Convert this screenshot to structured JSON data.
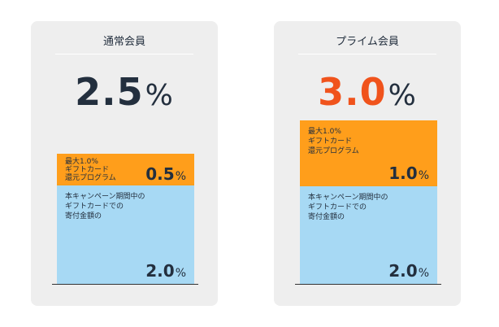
{
  "colors": {
    "orange": "#ff9e1b",
    "blue": "#a7d9f4",
    "card_bg": "#eeeeee",
    "dark_text": "#232f3e",
    "prime_accent": "#f0531c"
  },
  "cards": [
    {
      "title": "通常会員",
      "total_rate": "2.5",
      "total_unit": "%",
      "bonus": {
        "label": "最大1.0%\nギフトカード\n還元プログラム",
        "value": "0.5",
        "unit": "%"
      },
      "base": {
        "label": "本キャンペーン期間中の\nギフトカードでの\n寄付金額の",
        "value": "2.0",
        "unit": "%"
      }
    },
    {
      "title": "プライム会員",
      "total_rate": "3.0",
      "total_unit": "%",
      "bonus": {
        "label": "最大1.0%\nギフトカード\n還元プログラム",
        "value": "1.0",
        "unit": "%"
      },
      "base": {
        "label": "本キャンペーン期間中の\nギフトカードでの\n寄付金額の",
        "value": "2.0",
        "unit": "%"
      }
    }
  ]
}
